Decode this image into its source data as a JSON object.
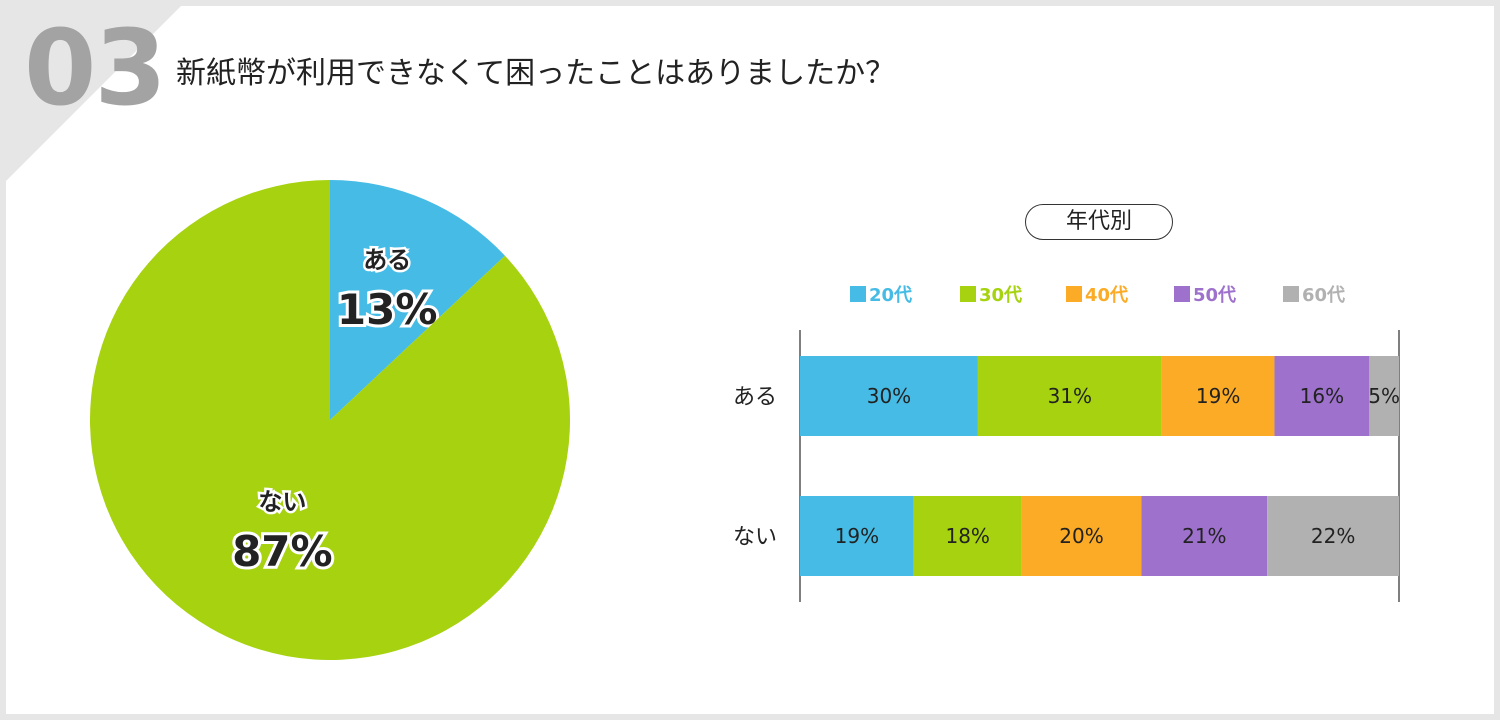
{
  "header": {
    "number": "03",
    "question": "新紙幣が利用できなくて困ったことはありましたか？"
  },
  "colors": {
    "blue": "#45bbe5",
    "green": "#a6d20f",
    "orange": "#fbab25",
    "purple": "#9e72cc",
    "gray": "#b1b1b1"
  },
  "chart_data": [
    {
      "type": "pie",
      "slices": [
        {
          "label": "ある",
          "value": 13,
          "display": "13%",
          "color": "#45bbe5"
        },
        {
          "label": "ない",
          "value": 87,
          "display": "87%",
          "color": "#a6d20f"
        }
      ]
    },
    {
      "type": "bar",
      "orientation": "horizontal",
      "stacked": true,
      "percent": true,
      "title": "年代別",
      "categories": [
        "ある",
        "ない"
      ],
      "series": [
        {
          "name": "20代",
          "color": "#45bbe5",
          "values": [
            30,
            19
          ]
        },
        {
          "name": "30代",
          "color": "#a6d20f",
          "values": [
            31,
            18
          ]
        },
        {
          "name": "40代",
          "color": "#fbab25",
          "values": [
            19,
            20
          ]
        },
        {
          "name": "50代",
          "color": "#9e72cc",
          "values": [
            16,
            21
          ]
        },
        {
          "name": "60代",
          "color": "#b1b1b1",
          "values": [
            5,
            22
          ]
        }
      ],
      "legend_position": "top"
    }
  ]
}
